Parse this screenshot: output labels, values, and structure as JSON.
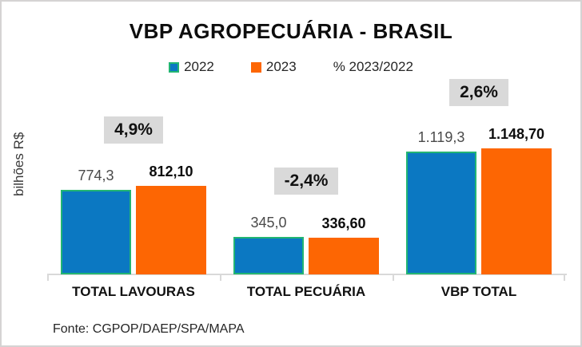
{
  "header": {
    "title": "VBP AGROPECUÁRIA - BRASIL"
  },
  "legend": {
    "items": [
      {
        "label": "2022",
        "swatch_color": "#0b78c2",
        "swatch_border": "#22b573"
      },
      {
        "label": "2023",
        "swatch_color": "#fd6603",
        "swatch_border": "#fd6603"
      },
      {
        "label": "% 2023/2022"
      }
    ]
  },
  "chart_data": {
    "type": "bar",
    "title": "VBP AGROPECUÁRIA - BRASIL",
    "xlabel": "",
    "ylabel": "bilhões R$",
    "categories": [
      "TOTAL LAVOURAS",
      "TOTAL PECUÁRIA",
      "VBP TOTAL"
    ],
    "series": [
      {
        "name": "2022",
        "values": [
          774.3,
          345.0,
          1119.3
        ],
        "value_labels": [
          "774,3",
          "345,0",
          "1.119,3"
        ],
        "color": "#0b78c2",
        "border_color": "#22b573"
      },
      {
        "name": "2023",
        "values": [
          812.1,
          336.6,
          1148.7
        ],
        "value_labels": [
          "812,10",
          "336,60",
          "1.148,70"
        ],
        "color": "#fd6603"
      }
    ],
    "pct_change_labels": [
      "4,9%",
      "-2,4%",
      "2,6%"
    ],
    "pct_change_values": [
      4.9,
      -2.4,
      2.6
    ],
    "ylim": [
      0,
      1200
    ],
    "grid": false,
    "legend_position": "top",
    "axis_color": "#d9d9d9",
    "source": "Fonte: CGPOP/DAEP/SPA/MAPA"
  },
  "footer": {
    "source": "Fonte: CGPOP/DAEP/SPA/MAPA"
  }
}
